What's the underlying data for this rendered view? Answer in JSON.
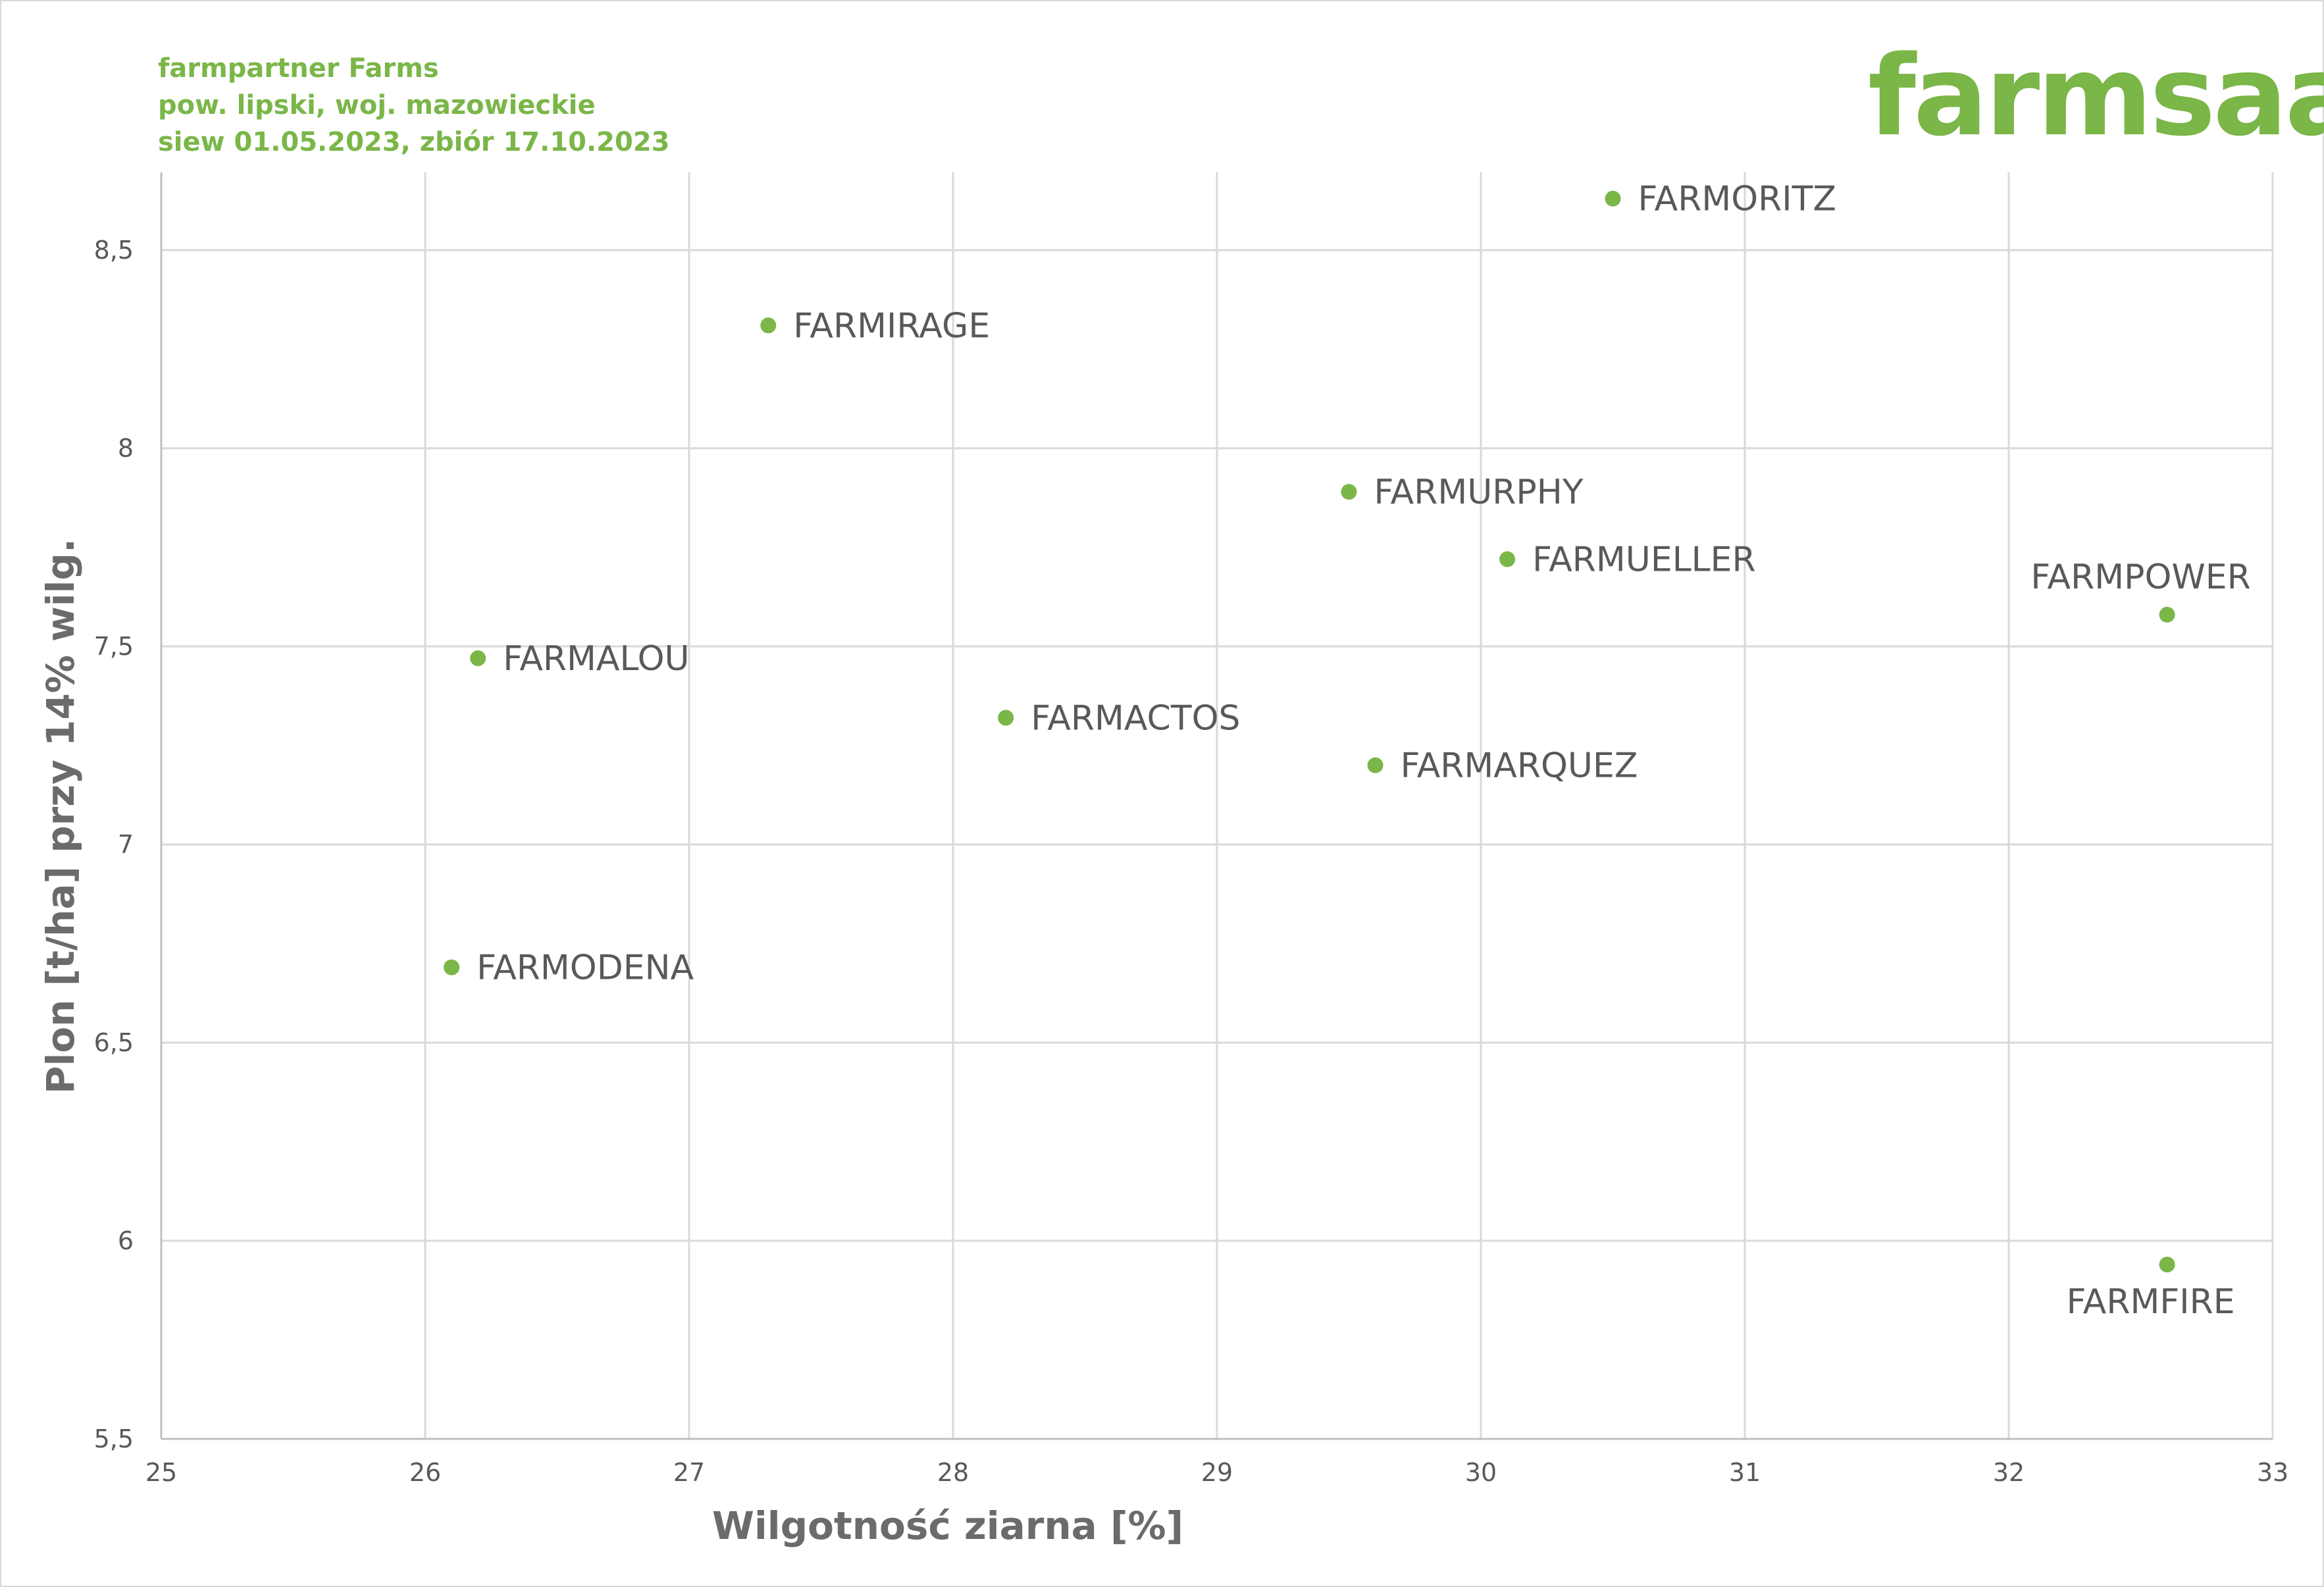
{
  "header": {
    "line1": "farmpartner Farms",
    "line2": "pow. lipski, woj. mazowieckie",
    "line3": "siew 01.05.2023, zbiór 17.10.2023"
  },
  "logo": {
    "text": "farmsaat"
  },
  "colors": {
    "accent": "#7ab648",
    "grid": "#d9d9d9",
    "text": "#595959",
    "axis_title": "#6b6b6b"
  },
  "chart_data": {
    "type": "scatter",
    "xlabel": "Wilgotność ziarna [%]",
    "ylabel": "Plon [t/ha] przy 14% wilg.",
    "xlim": [
      25,
      33
    ],
    "ylim": [
      5.5,
      8.7
    ],
    "x_ticks": [
      {
        "value": 25,
        "label": "25"
      },
      {
        "value": 26,
        "label": "26"
      },
      {
        "value": 27,
        "label": "27"
      },
      {
        "value": 28,
        "label": "28"
      },
      {
        "value": 29,
        "label": "29"
      },
      {
        "value": 30,
        "label": "30"
      },
      {
        "value": 31,
        "label": "31"
      },
      {
        "value": 32,
        "label": "32"
      },
      {
        "value": 33,
        "label": "33"
      }
    ],
    "y_ticks": [
      {
        "value": 5.5,
        "label": "5,5"
      },
      {
        "value": 6,
        "label": "6"
      },
      {
        "value": 6.5,
        "label": "6,5"
      },
      {
        "value": 7,
        "label": "7"
      },
      {
        "value": 7.5,
        "label": "7,5"
      },
      {
        "value": 8,
        "label": "8"
      },
      {
        "value": 8.5,
        "label": "8,5"
      }
    ],
    "grid": true,
    "points": [
      {
        "label": "FARMORITZ",
        "x": 30.5,
        "y": 8.63,
        "label_pos": "right"
      },
      {
        "label": "FARMIRAGE",
        "x": 27.3,
        "y": 8.31,
        "label_pos": "right"
      },
      {
        "label": "FARMURPHY",
        "x": 29.5,
        "y": 7.89,
        "label_pos": "right"
      },
      {
        "label": "FARMUELLER",
        "x": 30.1,
        "y": 7.72,
        "label_pos": "right"
      },
      {
        "label": "FARMPOWER",
        "x": 32.6,
        "y": 7.58,
        "label_pos": "above"
      },
      {
        "label": "FARMALOU",
        "x": 26.2,
        "y": 7.47,
        "label_pos": "right"
      },
      {
        "label": "FARMACTOS",
        "x": 28.2,
        "y": 7.32,
        "label_pos": "right"
      },
      {
        "label": "FARMARQUEZ",
        "x": 29.6,
        "y": 7.2,
        "label_pos": "right"
      },
      {
        "label": "FARMODENA",
        "x": 26.1,
        "y": 6.69,
        "label_pos": "right"
      },
      {
        "label": "FARMFIRE",
        "x": 32.6,
        "y": 5.94,
        "label_pos": "below"
      }
    ]
  }
}
